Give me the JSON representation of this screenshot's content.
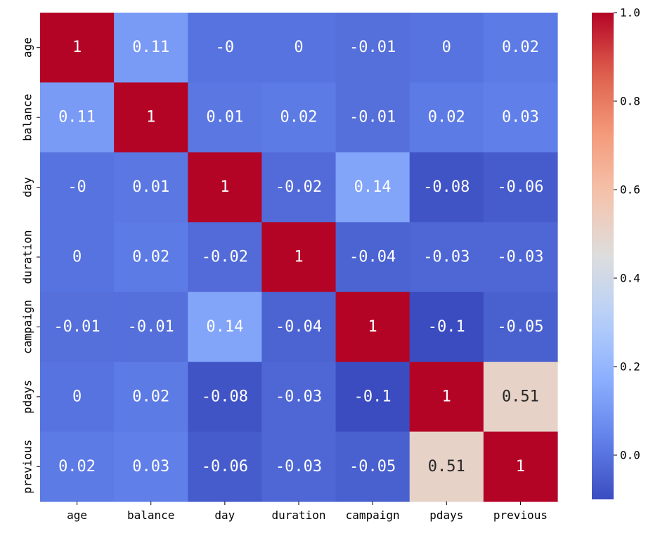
{
  "chart_data": {
    "type": "heatmap",
    "title": "",
    "xlabel": "",
    "ylabel": "",
    "x_labels": [
      "age",
      "balance",
      "day",
      "duration",
      "campaign",
      "pdays",
      "previous"
    ],
    "y_labels": [
      "age",
      "balance",
      "day",
      "duration",
      "campaign",
      "pdays",
      "previous"
    ],
    "values": [
      [
        1,
        0.11,
        0,
        0,
        -0.01,
        0,
        0.02
      ],
      [
        0.11,
        1,
        0.01,
        0.02,
        -0.01,
        0.02,
        0.03
      ],
      [
        0,
        0.01,
        1,
        -0.02,
        0.14,
        -0.08,
        -0.06
      ],
      [
        0,
        0.02,
        -0.02,
        1,
        -0.04,
        -0.03,
        -0.03
      ],
      [
        -0.01,
        -0.01,
        0.14,
        -0.04,
        1,
        -0.1,
        -0.05
      ],
      [
        0,
        0.02,
        -0.08,
        -0.03,
        -0.1,
        1,
        0.51
      ],
      [
        0.02,
        0.03,
        -0.06,
        -0.03,
        -0.05,
        0.51,
        1
      ]
    ],
    "annotations": [
      [
        "1",
        "0.11",
        "-0",
        "0",
        "-0.01",
        "0",
        "0.02"
      ],
      [
        "0.11",
        "1",
        "0.01",
        "0.02",
        "-0.01",
        "0.02",
        "0.03"
      ],
      [
        "-0",
        "0.01",
        "1",
        "-0.02",
        "0.14",
        "-0.08",
        "-0.06"
      ],
      [
        "0",
        "0.02",
        "-0.02",
        "1",
        "-0.04",
        "-0.03",
        "-0.03"
      ],
      [
        "-0.01",
        "-0.01",
        "0.14",
        "-0.04",
        "1",
        "-0.1",
        "-0.05"
      ],
      [
        "0",
        "0.02",
        "-0.08",
        "-0.03",
        "-0.1",
        "1",
        "0.51"
      ],
      [
        "0.02",
        "0.03",
        "-0.06",
        "-0.03",
        "-0.05",
        "0.51",
        "1"
      ]
    ],
    "colormap": "coolwarm",
    "vmin": -0.1,
    "vmax": 1.0,
    "colorbar": {
      "ticks": [
        0.0,
        0.2,
        0.4,
        0.6,
        0.8,
        1.0
      ],
      "tick_labels": [
        "0.0",
        "0.2",
        "0.4",
        "0.6",
        "0.8",
        "1.0"
      ],
      "placement": "right"
    },
    "grid": false,
    "legend": "none"
  }
}
